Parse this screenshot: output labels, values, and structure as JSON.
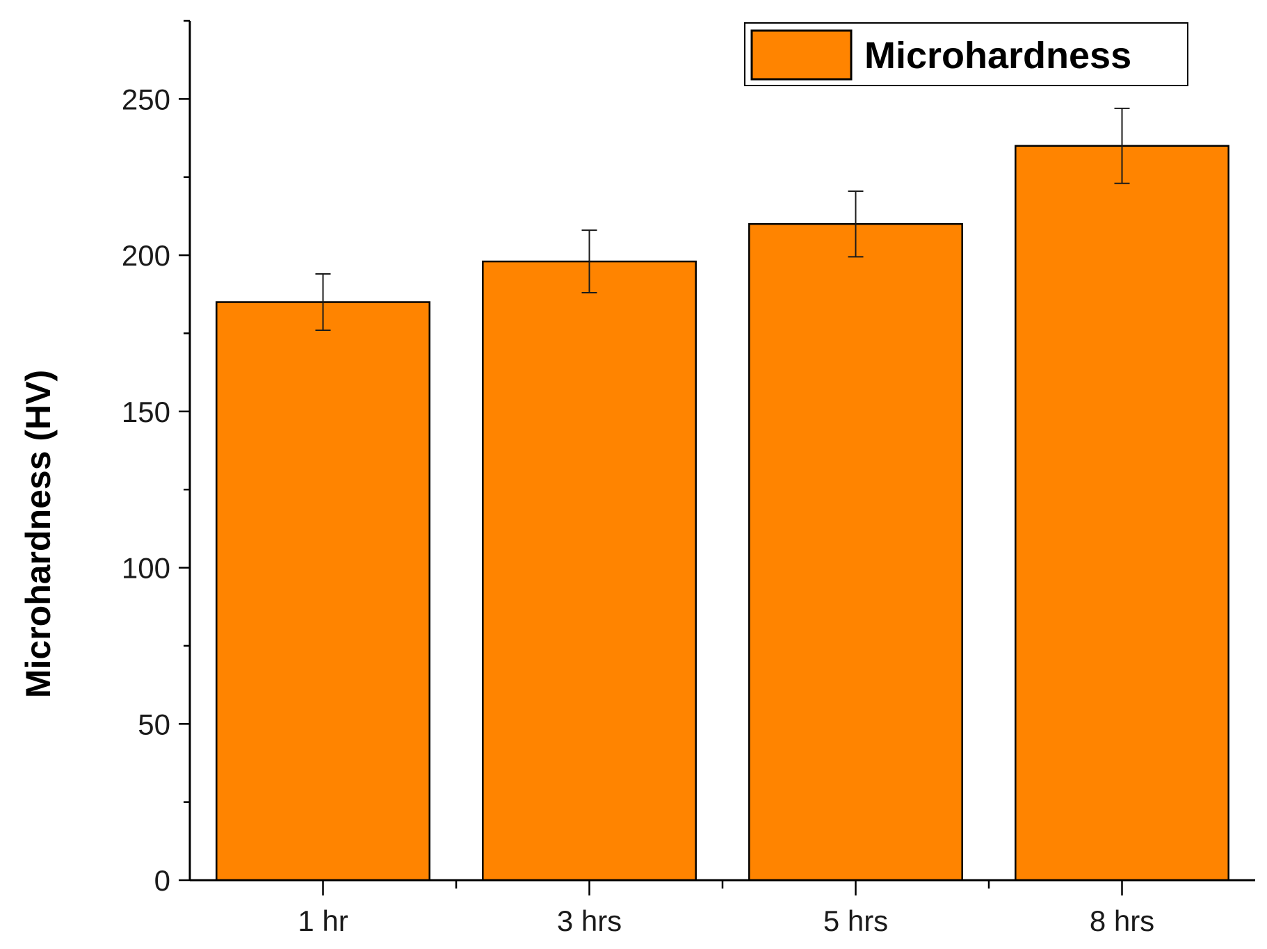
{
  "chart_data": {
    "type": "bar",
    "title": "",
    "xlabel": "",
    "ylabel": "Microhardness (HV)",
    "categories": [
      "1 hr",
      "3 hrs",
      "5 hrs",
      "8 hrs"
    ],
    "series": [
      {
        "name": "Microhardness",
        "values": [
          185,
          198,
          210,
          235
        ],
        "errors": [
          9,
          10,
          10.5,
          12
        ],
        "color": "#FF8400"
      }
    ],
    "ylim": [
      0,
      275
    ],
    "yticks": [
      0,
      50,
      100,
      150,
      200,
      250
    ],
    "grid": false,
    "legend": "top-right"
  }
}
